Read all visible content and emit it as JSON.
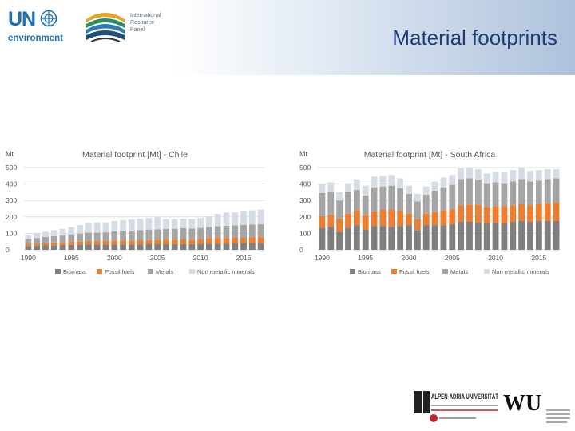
{
  "header": {
    "title": "Material footprints",
    "un_logo_text": "UN",
    "un_env_text": "environment",
    "irp_lines": [
      "International",
      "Resource",
      "Panel"
    ]
  },
  "footer": {
    "aau_text": "ALPEN-ADRIA UNIVERSITÄT",
    "wu_text": "WU"
  },
  "colors": {
    "biomass": "#7f7f7f",
    "fossil": "#ed7d31",
    "metals": "#a5a5a5",
    "nonmet": "#d6dce5"
  },
  "chart_data": [
    {
      "type": "bar",
      "stacked": true,
      "title": "Material footprint [Mt] - Chile",
      "ylabel": "Mt",
      "ylim": [
        0,
        500
      ],
      "yticks": [
        0,
        100,
        200,
        300,
        400,
        500
      ],
      "xtick_labels": [
        "1990",
        "1995",
        "2000",
        "2005",
        "2010",
        "2015"
      ],
      "categories": [
        "1990",
        "1991",
        "1992",
        "1993",
        "1994",
        "1995",
        "1996",
        "1997",
        "1998",
        "1999",
        "2000",
        "2001",
        "2002",
        "2003",
        "2004",
        "2005",
        "2006",
        "2007",
        "2008",
        "2009",
        "2010",
        "2011",
        "2012",
        "2013",
        "2014",
        "2015",
        "2016",
        "2017"
      ],
      "series": [
        {
          "name": "Biomass",
          "values": [
            22,
            25,
            27,
            28,
            29,
            30,
            31,
            32,
            32,
            32,
            33,
            33,
            33,
            33,
            34,
            34,
            34,
            35,
            35,
            35,
            36,
            37,
            38,
            38,
            39,
            40,
            40,
            41
          ]
        },
        {
          "name": "Fossil fuels",
          "values": [
            14,
            15,
            16,
            17,
            18,
            20,
            21,
            22,
            23,
            22,
            24,
            24,
            24,
            25,
            25,
            26,
            27,
            27,
            28,
            27,
            29,
            31,
            33,
            34,
            34,
            35,
            35,
            35
          ]
        },
        {
          "name": "Metals",
          "values": [
            30,
            32,
            35,
            38,
            40,
            44,
            47,
            50,
            50,
            52,
            55,
            58,
            60,
            62,
            64,
            65,
            65,
            66,
            68,
            67,
            68,
            70,
            72,
            74,
            75,
            77,
            78,
            79
          ]
        },
        {
          "name": "Non metallic minerals",
          "values": [
            25,
            30,
            32,
            37,
            40,
            44,
            52,
            60,
            62,
            60,
            63,
            65,
            67,
            68,
            70,
            72,
            60,
            58,
            58,
            58,
            60,
            66,
            75,
            80,
            80,
            86,
            87,
            90
          ]
        }
      ],
      "legend": [
        "Biomass",
        "Fossil fuels",
        "Metals",
        "Non metallic minerals"
      ]
    },
    {
      "type": "bar",
      "stacked": true,
      "title": "Material footprint [Mt] - South Africa",
      "ylabel": "Mt",
      "ylim": [
        0,
        500
      ],
      "yticks": [
        0,
        100,
        200,
        300,
        400,
        500
      ],
      "xtick_labels": [
        "1990",
        "1995",
        "2000",
        "2005",
        "2010",
        "2015"
      ],
      "categories": [
        "1990",
        "1991",
        "1992",
        "1993",
        "1994",
        "1995",
        "1996",
        "1997",
        "1998",
        "1999",
        "2000",
        "2001",
        "2002",
        "2003",
        "2004",
        "2005",
        "2006",
        "2007",
        "2008",
        "2009",
        "2010",
        "2011",
        "2012",
        "2013",
        "2014",
        "2015",
        "2016",
        "2017"
      ],
      "series": [
        {
          "name": "Biomass",
          "values": [
            135,
            140,
            110,
            135,
            150,
            125,
            145,
            145,
            140,
            145,
            150,
            120,
            150,
            150,
            150,
            155,
            170,
            170,
            165,
            160,
            165,
            160,
            170,
            175,
            170,
            175,
            175,
            175
          ]
        },
        {
          "name": "Fossil fuels",
          "values": [
            70,
            75,
            80,
            85,
            90,
            85,
            90,
            100,
            105,
            95,
            70,
            65,
            70,
            80,
            90,
            90,
            100,
            105,
            110,
            100,
            100,
            105,
            100,
            105,
            100,
            105,
            110,
            115
          ]
        },
        {
          "name": "Metals",
          "values": [
            140,
            140,
            110,
            130,
            125,
            120,
            145,
            140,
            145,
            135,
            120,
            110,
            115,
            130,
            140,
            150,
            160,
            160,
            150,
            145,
            145,
            140,
            145,
            150,
            145,
            140,
            145,
            145
          ]
        },
        {
          "name": "Non metallic minerals",
          "values": [
            55,
            55,
            50,
            55,
            65,
            60,
            65,
            65,
            65,
            60,
            50,
            45,
            50,
            55,
            60,
            60,
            65,
            65,
            65,
            60,
            65,
            65,
            70,
            70,
            65,
            65,
            60,
            55
          ]
        }
      ],
      "legend": [
        "Biomass",
        "Fossil fuels",
        "Metals",
        "Non metallic minerals"
      ]
    }
  ]
}
